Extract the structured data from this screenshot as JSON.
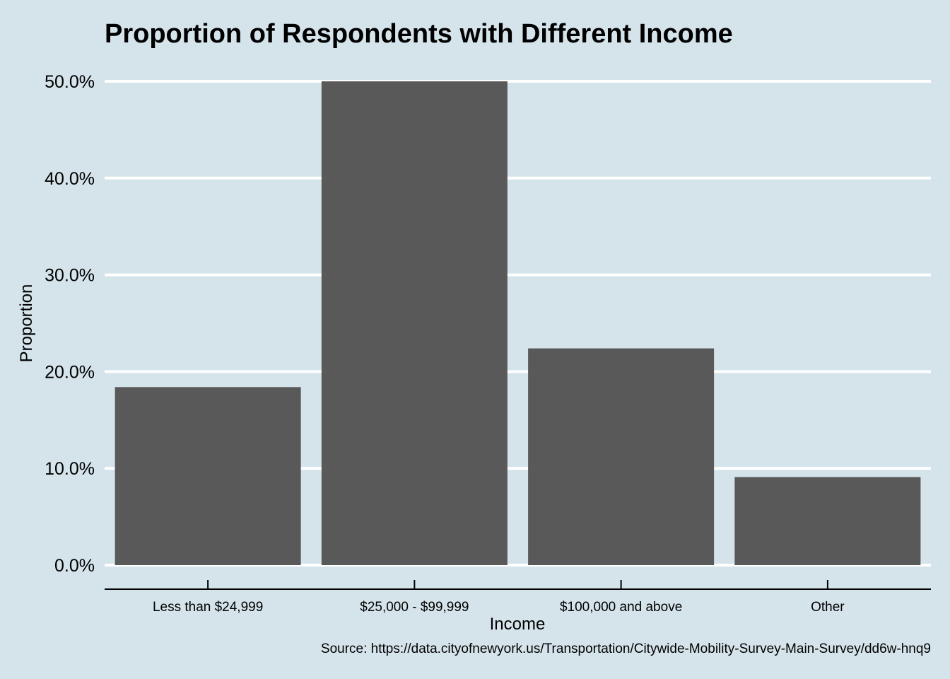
{
  "chart_data": {
    "type": "bar",
    "title": "Proportion of Respondents with Different Income",
    "xlabel": "Income",
    "ylabel": "Proportion",
    "caption": "Source: https://data.cityofnewyork.us/Transportation/Citywide-Mobility-Survey-Main-Survey/dd6w-hnq9",
    "categories": [
      "Less than $24,999",
      "$25,000 - $99,999",
      "$100,000 and above",
      "Other"
    ],
    "values": [
      0.184,
      0.5,
      0.224,
      0.091
    ],
    "ylim": [
      0,
      0.5
    ],
    "yticks": [
      0,
      0.1,
      0.2,
      0.3,
      0.4,
      0.5
    ],
    "ytick_labels": [
      "0.0%",
      "10.0%",
      "20.0%",
      "30.0%",
      "40.0%",
      "50.0%"
    ],
    "grid": "horizontal",
    "legend": "none",
    "colors": {
      "background": "#d5e4eb",
      "bar": "#595959",
      "grid": "#ffffff",
      "axis": "#000000"
    }
  }
}
